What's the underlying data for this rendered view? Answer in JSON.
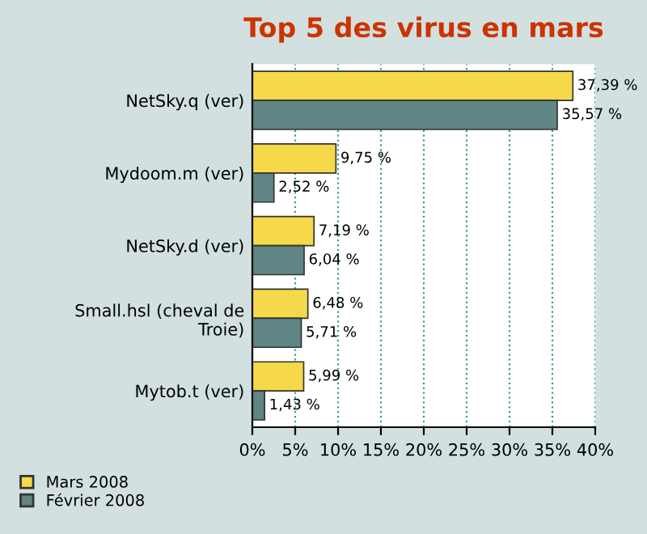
{
  "chart_data": {
    "type": "bar",
    "orientation": "horizontal",
    "title": "Top 5 des virus en mars",
    "categories": [
      "NetSky.q (ver)",
      "Mydoom.m (ver)",
      "NetSky.d (ver)",
      "Small.hsl (cheval de\nTroie)",
      "Mytob.t (ver)"
    ],
    "series": [
      {
        "name": "Mars 2008",
        "color": "#f5d94a",
        "values": [
          37.39,
          9.75,
          7.19,
          6.48,
          5.99
        ],
        "value_labels": [
          "37,39 %",
          "9,75 %",
          "7,19 %",
          "6,48 %",
          "5,99 %"
        ]
      },
      {
        "name": "Février 2008",
        "color": "#5f8584",
        "values": [
          35.57,
          2.52,
          6.04,
          5.71,
          1.43
        ],
        "value_labels": [
          "35,57 %",
          "2,52 %",
          "6,04 %",
          "5,71 %",
          "1,43 %"
        ]
      }
    ],
    "xlim": [
      0,
      40
    ],
    "xticks": [
      {
        "value": 0,
        "label": "0%"
      },
      {
        "value": 5,
        "label": "5%"
      },
      {
        "value": 10,
        "label": "10%"
      },
      {
        "value": 15,
        "label": "15%"
      },
      {
        "value": 20,
        "label": "20%"
      },
      {
        "value": 25,
        "label": "25%"
      },
      {
        "value": 30,
        "label": "30%"
      },
      {
        "value": 35,
        "label": "35%"
      },
      {
        "value": 40,
        "label": "40%"
      }
    ],
    "grid": "x",
    "legend": "bottom left"
  }
}
